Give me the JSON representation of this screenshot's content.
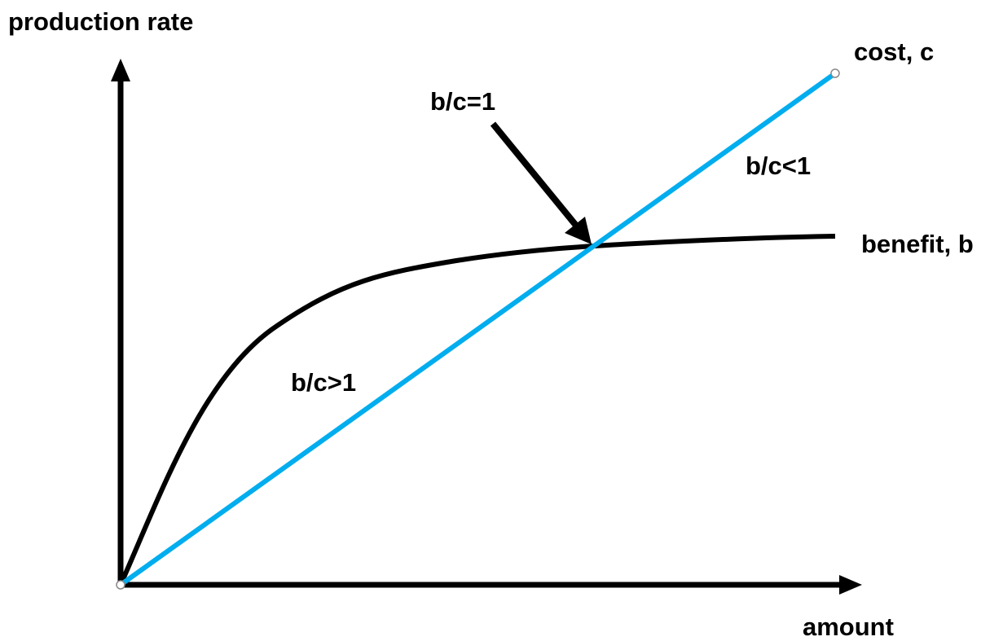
{
  "axes": {
    "y_label": "production rate",
    "x_label": "amount"
  },
  "curves": {
    "cost": "cost, c",
    "benefit": "benefit, b"
  },
  "annotations": {
    "equal": "b/c=1",
    "less": "b/c<1",
    "greater": "b/c>1"
  }
}
